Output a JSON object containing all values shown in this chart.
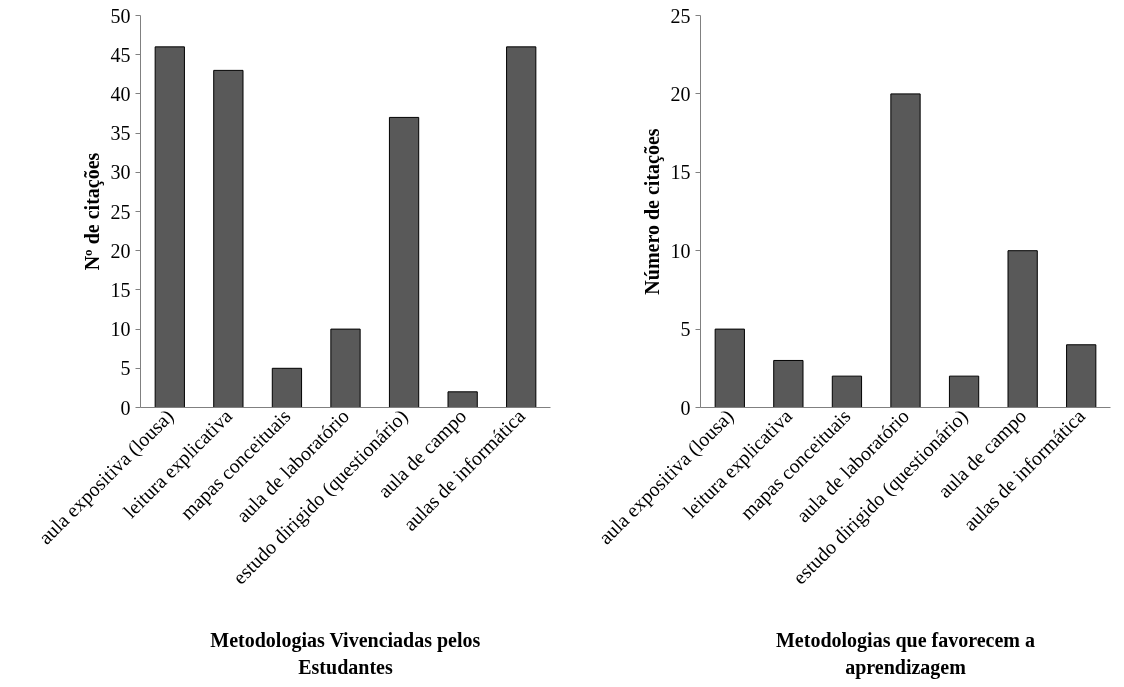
{
  "chart_data": [
    {
      "type": "bar",
      "categories": [
        "aula expositiva (lousa)",
        "leitura explicativa",
        "mapas conceituais",
        "aula de laboratório",
        "estudo dirigido (questionário)",
        "aula de campo",
        "aulas de informática"
      ],
      "values": [
        46,
        43,
        5,
        10,
        37,
        2,
        46
      ],
      "color": "#595959",
      "ylabel": "Nº de citações",
      "xlabel": "Metodologias Vivenciadas pelos Estudantes",
      "ylim": [
        0,
        50
      ],
      "yticks": [
        0,
        5,
        10,
        15,
        20,
        25,
        30,
        35,
        40,
        45,
        50
      ],
      "grid": false
    },
    {
      "type": "bar",
      "categories": [
        "aula expositiva (lousa)",
        "leitura explicativa",
        "mapas conceituais",
        "aula de laboratório",
        "estudo dirigido (questionário)",
        "aula de campo",
        "aulas de informática"
      ],
      "values": [
        5,
        3,
        2,
        20,
        2,
        10,
        4
      ],
      "color": "#595959",
      "ylabel": "Número de citações",
      "xlabel": "Metodologias que favorecem a aprendizagem",
      "ylim": [
        0,
        25
      ],
      "yticks": [
        0,
        5,
        10,
        15,
        20,
        25
      ],
      "grid": false
    }
  ]
}
